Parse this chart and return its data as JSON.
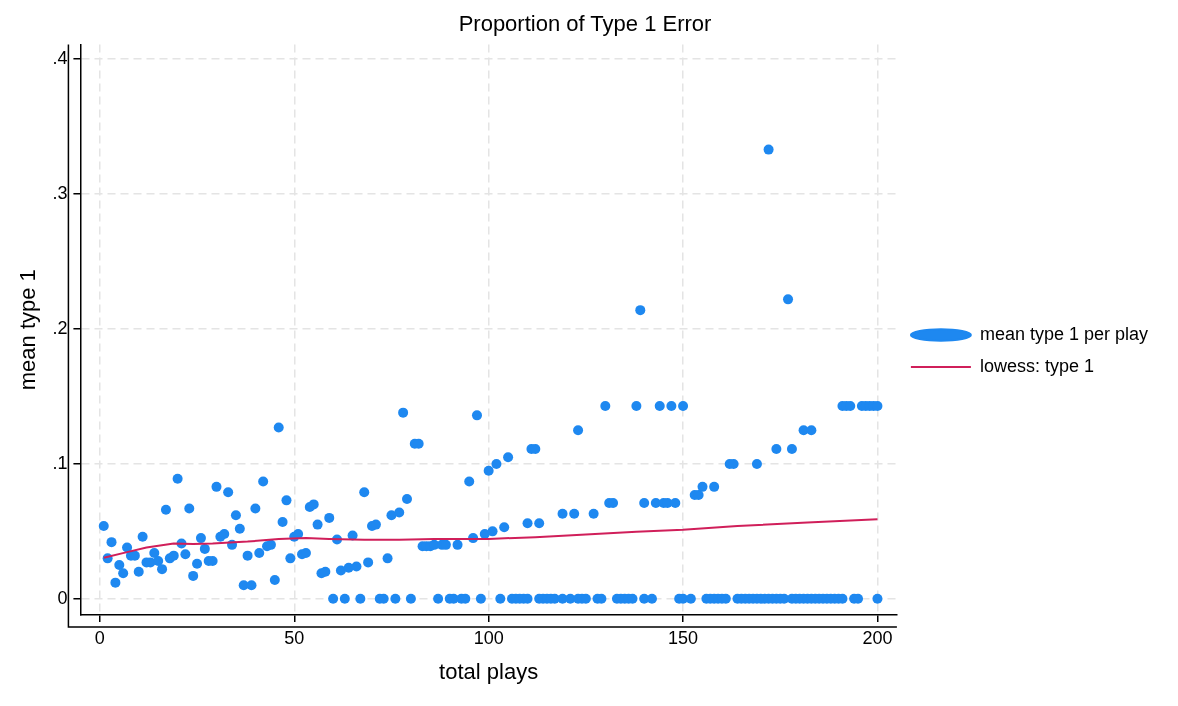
{
  "chart_data": {
    "type": "scatter",
    "title": "Proportion of Type 1 Error",
    "xlabel": "total plays",
    "ylabel": "mean type 1",
    "xlim": [
      -5,
      205
    ],
    "xticks": [
      0,
      50,
      100,
      150,
      200
    ],
    "ylim": [
      -0.012,
      0.411
    ],
    "yticks": [
      0,
      {
        "value": 0.1,
        "label": ".1"
      },
      {
        "value": 0.2,
        "label": ".2"
      },
      {
        "value": 0.3,
        "label": ".3"
      },
      {
        "value": 0.4,
        "label": ".4"
      }
    ],
    "grid": true,
    "legend": "right",
    "series": [
      {
        "name": "mean type 1 per play",
        "type": "scatter",
        "marker": "circle",
        "color": "#1e88f0",
        "x": [
          1,
          2,
          3,
          4,
          5,
          6,
          7,
          8,
          9,
          10,
          11,
          12,
          13,
          14,
          15,
          16,
          17,
          18,
          19,
          20,
          21,
          22,
          23,
          24,
          25,
          26,
          27,
          28,
          29,
          30,
          31,
          32,
          33,
          34,
          35,
          36,
          37,
          38,
          39,
          40,
          41,
          42,
          43,
          44,
          45,
          46,
          47,
          48,
          49,
          50,
          51,
          52,
          53,
          54,
          55,
          56,
          57,
          58,
          59,
          61,
          62,
          64,
          65,
          66,
          68,
          69,
          70,
          71,
          74,
          75,
          77,
          78,
          79,
          81,
          82,
          83,
          84,
          85,
          86,
          88,
          89,
          92,
          95,
          96,
          97,
          99,
          100,
          101,
          102,
          104,
          105,
          110,
          111,
          112,
          113,
          119,
          122,
          123,
          127,
          130,
          131,
          132,
          138,
          139,
          140,
          143,
          144,
          145,
          146,
          147,
          148,
          150,
          153,
          154,
          155,
          158,
          162,
          163,
          169,
          172,
          174,
          177,
          178,
          181,
          183,
          191,
          192,
          193,
          196,
          197,
          198,
          199,
          200,
          60,
          63,
          67,
          72,
          73,
          76,
          80,
          87,
          90,
          91,
          93,
          94,
          98,
          103,
          106,
          107,
          108,
          109,
          110,
          113,
          114,
          115,
          116,
          117,
          119,
          121,
          123,
          124,
          125,
          128,
          129,
          133,
          134,
          135,
          136,
          137,
          140,
          142,
          149,
          150,
          152,
          156,
          157,
          158,
          159,
          160,
          161,
          164,
          165,
          166,
          167,
          168,
          169,
          170,
          171,
          172,
          173,
          174,
          175,
          176,
          178,
          179,
          180,
          181,
          182,
          183,
          184,
          185,
          186,
          187,
          188,
          189,
          190,
          191,
          194,
          195,
          200
        ],
        "values": [
          0.054,
          0.03,
          0.042,
          0.012,
          0.025,
          0.019,
          0.038,
          0.032,
          0.032,
          0.02,
          0.046,
          0.027,
          0.027,
          0.034,
          0.028,
          0.022,
          0.066,
          0.03,
          0.032,
          0.089,
          0.041,
          0.033,
          0.067,
          0.017,
          0.026,
          0.045,
          0.037,
          0.028,
          0.028,
          0.083,
          0.046,
          0.048,
          0.079,
          0.04,
          0.062,
          0.052,
          0.01,
          0.032,
          0.01,
          0.067,
          0.034,
          0.087,
          0.039,
          0.04,
          0.014,
          0.127,
          0.057,
          0.073,
          0.03,
          0.046,
          0.048,
          0.033,
          0.034,
          0.068,
          0.07,
          0.055,
          0.019,
          0.02,
          0.06,
          0.044,
          0.021,
          0.023,
          0.047,
          0.024,
          0.079,
          0.027,
          0.054,
          0.055,
          0.03,
          0.062,
          0.064,
          0.138,
          0.074,
          0.115,
          0.115,
          0.039,
          0.039,
          0.039,
          0.04,
          0.04,
          0.04,
          0.04,
          0.087,
          0.045,
          0.136,
          0.048,
          0.095,
          0.05,
          0.1,
          0.053,
          0.105,
          0.056,
          0.111,
          0.111,
          0.056,
          0.063,
          0.063,
          0.125,
          0.063,
          0.143,
          0.071,
          0.071,
          0.143,
          0.214,
          0.071,
          0.071,
          0.143,
          0.071,
          0.071,
          0.143,
          0.071,
          0.143,
          0.077,
          0.077,
          0.083,
          0.083,
          0.1,
          0.1,
          0.1,
          0.333,
          0.111,
          0.222,
          0.111,
          0.125,
          0.125,
          0.143,
          0.143,
          0.143,
          0.143,
          0.143,
          0.143,
          0.143,
          0.143,
          0,
          0,
          0,
          0,
          0,
          0,
          0,
          0,
          0,
          0,
          0,
          0,
          0,
          0,
          0,
          0,
          0,
          0,
          0,
          0,
          0,
          0,
          0,
          0,
          0,
          0,
          0,
          0,
          0,
          0,
          0,
          0,
          0,
          0,
          0,
          0,
          0,
          0,
          0,
          0,
          0,
          0,
          0,
          0,
          0,
          0,
          0,
          0,
          0,
          0,
          0,
          0,
          0,
          0,
          0,
          0,
          0,
          0,
          0,
          0,
          0,
          0,
          0,
          0,
          0,
          0,
          0,
          0,
          0,
          0,
          0,
          0,
          0,
          0,
          0,
          0,
          0
        ]
      },
      {
        "name": "lowess: type 1",
        "type": "line",
        "marker": "none",
        "line_style": "solid",
        "color": "#d01f5a",
        "x": [
          1,
          7,
          12,
          19,
          24,
          29,
          38,
          46,
          53,
          59,
          68,
          77,
          86,
          100,
          112,
          125,
          138,
          150,
          164,
          182,
          200
        ],
        "values": [
          0.0305,
          0.0346,
          0.038,
          0.041,
          0.0407,
          0.041,
          0.0424,
          0.0443,
          0.045,
          0.0443,
          0.0438,
          0.0438,
          0.0443,
          0.0444,
          0.0457,
          0.0476,
          0.0498,
          0.0512,
          0.054,
          0.0565,
          0.059
        ]
      }
    ]
  }
}
